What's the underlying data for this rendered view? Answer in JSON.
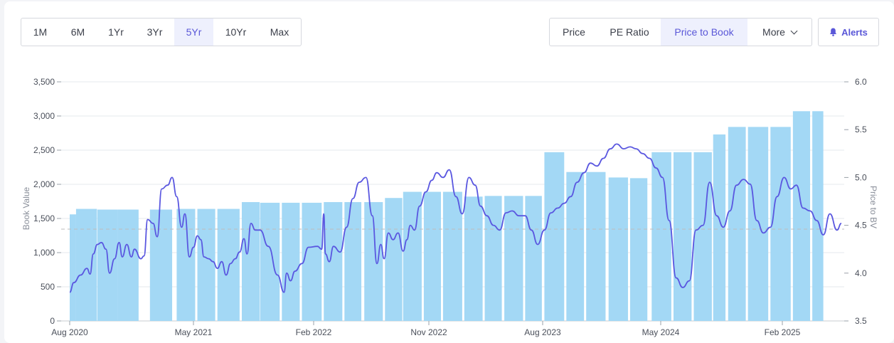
{
  "range_tabs": [
    "1M",
    "6M",
    "1Yr",
    "3Yr",
    "5Yr",
    "10Yr",
    "Max"
  ],
  "range_selected": "5Yr",
  "metric_tabs": {
    "price": "Price",
    "pe": "PE Ratio",
    "ptb": "Price to Book",
    "more": "More"
  },
  "metric_selected": "Price to Book",
  "alerts_label": "Alerts",
  "colors": {
    "bar": "#a3d8f5",
    "line": "#5a57e0",
    "accent": "#5a57d8",
    "reference": "#bdbdbd"
  },
  "chart_data": {
    "type": "bar+line",
    "title": "",
    "y_left_label": "Book Value",
    "y_right_label": "Price to BV",
    "y_left_lim": [
      0,
      3500
    ],
    "y_right_lim": [
      3.5,
      6.0
    ],
    "y_left_ticks": [
      "0",
      "500",
      "1,000",
      "1,500",
      "2,000",
      "2,500",
      "3,000",
      "3,500"
    ],
    "y_right_ticks": [
      "3.5",
      "4.0",
      "4.5",
      "5.0",
      "5.5",
      "6.0"
    ],
    "x_ticks": [
      {
        "label": "Aug 2020",
        "date": "2020-08-01"
      },
      {
        "label": "May 2021",
        "date": "2021-05-01"
      },
      {
        "label": "Feb 2022",
        "date": "2022-02-01"
      },
      {
        "label": "Nov 2022",
        "date": "2022-11-01"
      },
      {
        "label": "Aug 2023",
        "date": "2023-08-01"
      },
      {
        "label": "May 2024",
        "date": "2024-05-01"
      },
      {
        "label": "Feb 2025",
        "date": "2025-02-01"
      }
    ],
    "x_range": [
      "2020-08-01",
      "2025-06-15"
    ],
    "reference_line": 4.46,
    "grid": true,
    "book_value": [
      {
        "start": "2020-08-01",
        "end": "2020-08-15",
        "value": 1560
      },
      {
        "start": "2020-08-15",
        "end": "2020-09-30",
        "value": 1640
      },
      {
        "start": "2020-10-01",
        "end": "2020-11-15",
        "value": 1630
      },
      {
        "start": "2020-11-15",
        "end": "2020-12-31",
        "value": 1630
      },
      {
        "start": "2021-01-25",
        "end": "2021-03-15",
        "value": 1630
      },
      {
        "start": "2021-03-25",
        "end": "2021-05-05",
        "value": 1640
      },
      {
        "start": "2021-05-10",
        "end": "2021-06-20",
        "value": 1640
      },
      {
        "start": "2021-06-25",
        "end": "2021-08-15",
        "value": 1640
      },
      {
        "start": "2021-08-20",
        "end": "2021-09-30",
        "value": 1740
      },
      {
        "start": "2021-10-01",
        "end": "2021-11-15",
        "value": 1730
      },
      {
        "start": "2021-11-20",
        "end": "2021-12-31",
        "value": 1730
      },
      {
        "start": "2022-01-05",
        "end": "2022-02-20",
        "value": 1730
      },
      {
        "start": "2022-02-25",
        "end": "2022-04-10",
        "value": 1740
      },
      {
        "start": "2022-04-15",
        "end": "2022-05-25",
        "value": 1740
      },
      {
        "start": "2022-06-01",
        "end": "2022-07-15",
        "value": 1740
      },
      {
        "start": "2022-07-20",
        "end": "2022-08-30",
        "value": 1800
      },
      {
        "start": "2022-09-01",
        "end": "2022-10-15",
        "value": 1890
      },
      {
        "start": "2022-10-20",
        "end": "2022-11-30",
        "value": 1890
      },
      {
        "start": "2022-12-05",
        "end": "2023-01-20",
        "value": 1890
      },
      {
        "start": "2023-01-25",
        "end": "2023-03-10",
        "value": 1820
      },
      {
        "start": "2023-03-15",
        "end": "2023-04-25",
        "value": 1830
      },
      {
        "start": "2023-05-01",
        "end": "2023-06-15",
        "value": 1830
      },
      {
        "start": "2023-06-20",
        "end": "2023-07-30",
        "value": 1830
      },
      {
        "start": "2023-08-05",
        "end": "2023-09-20",
        "value": 2470
      },
      {
        "start": "2023-09-25",
        "end": "2023-11-05",
        "value": 2180
      },
      {
        "start": "2023-11-10",
        "end": "2023-12-25",
        "value": 2180
      },
      {
        "start": "2024-01-01",
        "end": "2024-02-15",
        "value": 2100
      },
      {
        "start": "2024-02-20",
        "end": "2024-03-31",
        "value": 2090
      },
      {
        "start": "2024-04-10",
        "end": "2024-05-25",
        "value": 2470
      },
      {
        "start": "2024-05-30",
        "end": "2024-07-10",
        "value": 2470
      },
      {
        "start": "2024-07-15",
        "end": "2024-08-25",
        "value": 2470
      },
      {
        "start": "2024-08-28",
        "end": "2024-09-25",
        "value": 2730
      },
      {
        "start": "2024-10-01",
        "end": "2024-11-10",
        "value": 2840
      },
      {
        "start": "2024-11-15",
        "end": "2024-12-31",
        "value": 2840
      },
      {
        "start": "2025-01-05",
        "end": "2025-02-20",
        "value": 2840
      },
      {
        "start": "2025-02-25",
        "end": "2025-04-05",
        "value": 3070
      },
      {
        "start": "2025-04-10",
        "end": "2025-05-05",
        "value": 3070
      }
    ],
    "price_to_bv": [
      [
        "2020-08-01",
        3.8
      ],
      [
        "2020-08-10",
        3.9
      ],
      [
        "2020-08-25",
        3.98
      ],
      [
        "2020-09-08",
        4.05
      ],
      [
        "2020-09-15",
        3.99
      ],
      [
        "2020-09-22",
        4.2
      ],
      [
        "2020-10-01",
        4.3
      ],
      [
        "2020-10-10",
        4.32
      ],
      [
        "2020-10-20",
        4.25
      ],
      [
        "2020-10-28",
        4.0
      ],
      [
        "2020-11-08",
        4.15
      ],
      [
        "2020-11-18",
        4.32
      ],
      [
        "2020-11-25",
        4.17
      ],
      [
        "2020-12-05",
        4.3
      ],
      [
        "2020-12-15",
        4.17
      ],
      [
        "2020-12-22",
        4.25
      ],
      [
        "2021-01-05",
        4.15
      ],
      [
        "2021-01-12",
        4.18
      ],
      [
        "2021-01-20",
        4.56
      ],
      [
        "2021-02-01",
        4.52
      ],
      [
        "2021-02-10",
        4.38
      ],
      [
        "2021-02-20",
        4.88
      ],
      [
        "2021-03-05",
        4.92
      ],
      [
        "2021-03-15",
        5.0
      ],
      [
        "2021-03-25",
        4.8
      ],
      [
        "2021-04-05",
        4.48
      ],
      [
        "2021-04-12",
        4.62
      ],
      [
        "2021-04-22",
        4.17
      ],
      [
        "2021-05-01",
        4.27
      ],
      [
        "2021-05-10",
        4.39
      ],
      [
        "2021-05-18",
        4.35
      ],
      [
        "2021-05-25",
        4.17
      ],
      [
        "2021-06-05",
        4.15
      ],
      [
        "2021-06-15",
        4.12
      ],
      [
        "2021-06-25",
        4.05
      ],
      [
        "2021-07-05",
        4.12
      ],
      [
        "2021-07-15",
        3.98
      ],
      [
        "2021-07-25",
        4.1
      ],
      [
        "2021-08-05",
        4.15
      ],
      [
        "2021-08-15",
        4.22
      ],
      [
        "2021-08-25",
        4.36
      ],
      [
        "2021-09-01",
        4.2
      ],
      [
        "2021-09-10",
        4.52
      ],
      [
        "2021-09-20",
        4.45
      ],
      [
        "2021-10-01",
        4.45
      ],
      [
        "2021-10-20",
        4.28
      ],
      [
        "2021-11-10",
        3.98
      ],
      [
        "2021-11-25",
        3.8
      ],
      [
        "2021-12-01",
        4.0
      ],
      [
        "2021-12-10",
        3.92
      ],
      [
        "2021-12-20",
        4.02
      ],
      [
        "2022-01-05",
        4.1
      ],
      [
        "2022-01-20",
        4.27
      ],
      [
        "2022-02-10",
        4.28
      ],
      [
        "2022-02-20",
        4.25
      ],
      [
        "2022-02-25",
        4.62
      ],
      [
        "2022-03-01",
        4.2
      ],
      [
        "2022-03-10",
        4.12
      ],
      [
        "2022-03-20",
        4.28
      ],
      [
        "2022-04-05",
        4.22
      ],
      [
        "2022-04-20",
        4.48
      ],
      [
        "2022-05-05",
        4.78
      ],
      [
        "2022-05-20",
        4.95
      ],
      [
        "2022-06-05",
        5.0
      ],
      [
        "2022-06-20",
        4.6
      ],
      [
        "2022-07-01",
        4.1
      ],
      [
        "2022-07-10",
        4.3
      ],
      [
        "2022-07-18",
        4.15
      ],
      [
        "2022-07-28",
        4.42
      ],
      [
        "2022-08-08",
        4.35
      ],
      [
        "2022-08-20",
        4.42
      ],
      [
        "2022-09-01",
        4.23
      ],
      [
        "2022-09-10",
        4.35
      ],
      [
        "2022-09-18",
        4.5
      ],
      [
        "2022-09-28",
        4.45
      ],
      [
        "2022-10-10",
        4.7
      ],
      [
        "2022-10-25",
        4.85
      ],
      [
        "2022-11-08",
        4.97
      ],
      [
        "2022-11-20",
        5.05
      ],
      [
        "2022-12-05",
        5.0
      ],
      [
        "2022-12-20",
        5.08
      ],
      [
        "2023-01-05",
        4.8
      ],
      [
        "2023-01-20",
        4.62
      ],
      [
        "2023-02-05",
        5.0
      ],
      [
        "2023-02-20",
        4.92
      ],
      [
        "2023-03-05",
        4.7
      ],
      [
        "2023-03-20",
        4.6
      ],
      [
        "2023-04-05",
        4.5
      ],
      [
        "2023-04-20",
        4.45
      ],
      [
        "2023-05-05",
        4.63
      ],
      [
        "2023-05-20",
        4.65
      ],
      [
        "2023-06-05",
        4.6
      ],
      [
        "2023-06-20",
        4.6
      ],
      [
        "2023-07-05",
        4.45
      ],
      [
        "2023-07-20",
        4.3
      ],
      [
        "2023-08-05",
        4.45
      ],
      [
        "2023-08-20",
        4.63
      ],
      [
        "2023-09-05",
        4.68
      ],
      [
        "2023-09-20",
        4.73
      ],
      [
        "2023-10-05",
        4.8
      ],
      [
        "2023-10-20",
        4.95
      ],
      [
        "2023-11-05",
        5.05
      ],
      [
        "2023-11-20",
        5.15
      ],
      [
        "2023-12-05",
        5.12
      ],
      [
        "2023-12-20",
        5.2
      ],
      [
        "2024-01-05",
        5.3
      ],
      [
        "2024-01-20",
        5.35
      ],
      [
        "2024-02-05",
        5.3
      ],
      [
        "2024-02-20",
        5.32
      ],
      [
        "2024-03-05",
        5.3
      ],
      [
        "2024-03-20",
        5.25
      ],
      [
        "2024-04-05",
        5.2
      ],
      [
        "2024-04-20",
        5.1
      ],
      [
        "2024-05-05",
        5.0
      ],
      [
        "2024-05-20",
        4.55
      ],
      [
        "2024-06-05",
        3.95
      ],
      [
        "2024-06-20",
        3.85
      ],
      [
        "2024-07-05",
        3.92
      ],
      [
        "2024-07-20",
        4.45
      ],
      [
        "2024-08-05",
        4.5
      ],
      [
        "2024-08-20",
        4.95
      ],
      [
        "2024-09-05",
        4.6
      ],
      [
        "2024-09-20",
        4.48
      ],
      [
        "2024-10-05",
        4.65
      ],
      [
        "2024-10-20",
        4.92
      ],
      [
        "2024-11-05",
        4.98
      ],
      [
        "2024-11-20",
        4.93
      ],
      [
        "2024-12-05",
        4.55
      ],
      [
        "2024-12-20",
        4.42
      ],
      [
        "2025-01-05",
        4.48
      ],
      [
        "2025-01-20",
        4.8
      ],
      [
        "2025-02-05",
        5.0
      ],
      [
        "2025-02-20",
        4.88
      ],
      [
        "2025-03-05",
        4.92
      ],
      [
        "2025-03-20",
        4.68
      ],
      [
        "2025-04-05",
        4.65
      ],
      [
        "2025-04-20",
        4.55
      ],
      [
        "2025-05-05",
        4.4
      ],
      [
        "2025-05-20",
        4.62
      ],
      [
        "2025-06-05",
        4.45
      ],
      [
        "2025-06-15",
        4.52
      ]
    ]
  }
}
